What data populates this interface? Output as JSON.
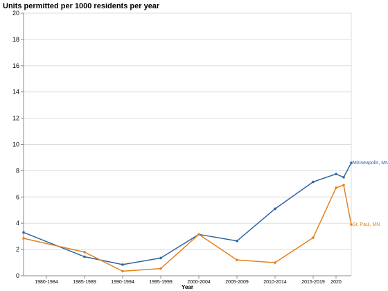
{
  "chart_data": {
    "type": "line",
    "title": "Units permitted per 1000 residents per year",
    "xlabel": "Year",
    "ylabel": "",
    "ylim": [
      0,
      20
    ],
    "yticks": [
      0,
      2,
      4,
      6,
      8,
      10,
      12,
      14,
      16,
      18,
      20
    ],
    "grid": true,
    "x_tick_labels": [
      "1980-1984",
      "1985-1989",
      "1990-1994",
      "1995-1999",
      "2000-2004",
      "2005-2009",
      "2010-2014",
      "2015-2019",
      "2020"
    ],
    "x_tick_positions": [
      1982,
      1987,
      1992,
      1997,
      2002,
      2007,
      2012,
      2017,
      2020
    ],
    "x_domain": [
      1979,
      2022
    ],
    "series": [
      {
        "name": "Minneapolis, MN",
        "color": "#2f65a4",
        "x": [
          1979,
          1987,
          1992,
          1997,
          2002,
          2007,
          2012,
          2017,
          2020,
          2021,
          2022
        ],
        "values": [
          3.3,
          1.45,
          0.85,
          1.35,
          3.15,
          2.65,
          5.1,
          7.15,
          7.75,
          7.5,
          8.6
        ]
      },
      {
        "name": "St. Paul, MN",
        "color": "#e3821e",
        "x": [
          1979,
          1987,
          1992,
          1997,
          2002,
          2007,
          2012,
          2017,
          2020,
          2021,
          2022
        ],
        "values": [
          2.85,
          1.8,
          0.35,
          0.55,
          3.15,
          1.2,
          1.0,
          2.9,
          6.7,
          6.9,
          3.9
        ]
      }
    ]
  }
}
